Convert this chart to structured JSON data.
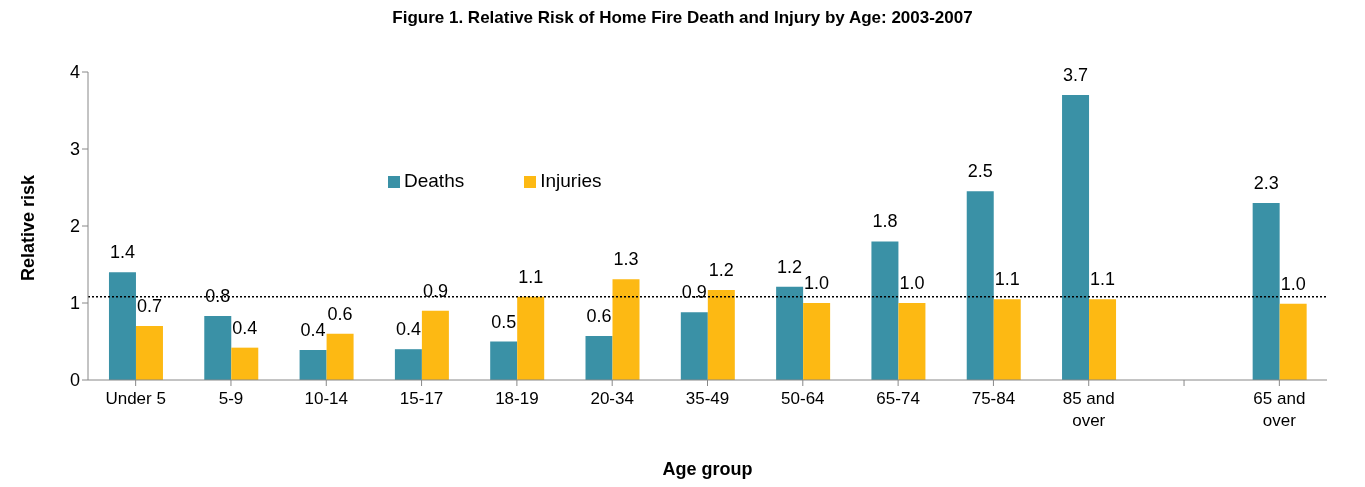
{
  "chart_data": {
    "type": "bar",
    "title": "Figure 1. Relative Risk of Home Fire Death and Injury by Age: 2003-2007",
    "xlabel": "Age group",
    "ylabel": "Relative risk",
    "categories": [
      "Under 5",
      "5-9",
      "10-14",
      "15-17",
      "18-19",
      "20-34",
      "35-49",
      "50-64",
      "65-74",
      "75-84",
      "85 and over",
      null,
      "65 and over"
    ],
    "series": [
      {
        "name": "Deaths",
        "color": "#3a91a6",
        "values": [
          1.4,
          0.83,
          0.39,
          0.4,
          0.5,
          0.57,
          0.88,
          1.21,
          1.8,
          2.45,
          3.7,
          null,
          2.3
        ],
        "value_labels": [
          "1.4",
          "0.8",
          "0.4",
          "0.4",
          "0.5",
          "0.6",
          "0.9",
          "1.2",
          "1.8",
          "2.5",
          "3.7",
          null,
          "2.3"
        ]
      },
      {
        "name": "Injuries",
        "color": "#fdb913",
        "values": [
          0.7,
          0.42,
          0.6,
          0.9,
          1.08,
          1.31,
          1.17,
          1.0,
          1.0,
          1.05,
          1.05,
          null,
          0.99
        ],
        "value_labels": [
          "0.7",
          "0.4",
          "0.6",
          "0.9",
          "1.1",
          "1.3",
          "1.2",
          "1.0",
          "1.0",
          "1.1",
          "1.1",
          null,
          "1.0"
        ]
      }
    ],
    "ylim": [
      0,
      4
    ],
    "yticks": [
      0,
      1,
      2,
      3,
      4
    ],
    "grid": false,
    "legend": "top",
    "ref_lines": [
      {
        "axis": "y",
        "value": 1.08,
        "color": "#000000",
        "line_style": "dotted"
      }
    ]
  }
}
